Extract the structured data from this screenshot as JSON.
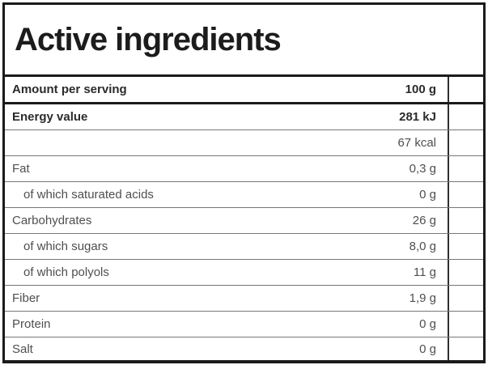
{
  "header": {
    "title": "Active ingredients"
  },
  "table": {
    "rows": [
      {
        "label": "Amount per serving",
        "value": "100 g"
      },
      {
        "label": "Energy value",
        "value": "281 kJ"
      },
      {
        "label": "",
        "value": "67 kcal"
      },
      {
        "label": "Fat",
        "value": "0,3 g"
      },
      {
        "label": "of which saturated acids",
        "value": "0 g"
      },
      {
        "label": "Carbohydrates",
        "value": "26 g"
      },
      {
        "label": "of which sugars",
        "value": "8,0 g"
      },
      {
        "label": "of which polyols",
        "value": "11 g"
      },
      {
        "label": "Fiber",
        "value": "1,9 g"
      },
      {
        "label": "Protein",
        "value": "0 g"
      },
      {
        "label": "Salt",
        "value": "0 g"
      }
    ]
  },
  "colors": {
    "border": "#1a1a1a",
    "text_bold": "#2b2b2b",
    "text_regular": "#4f4f4f",
    "separator": "#777777"
  }
}
